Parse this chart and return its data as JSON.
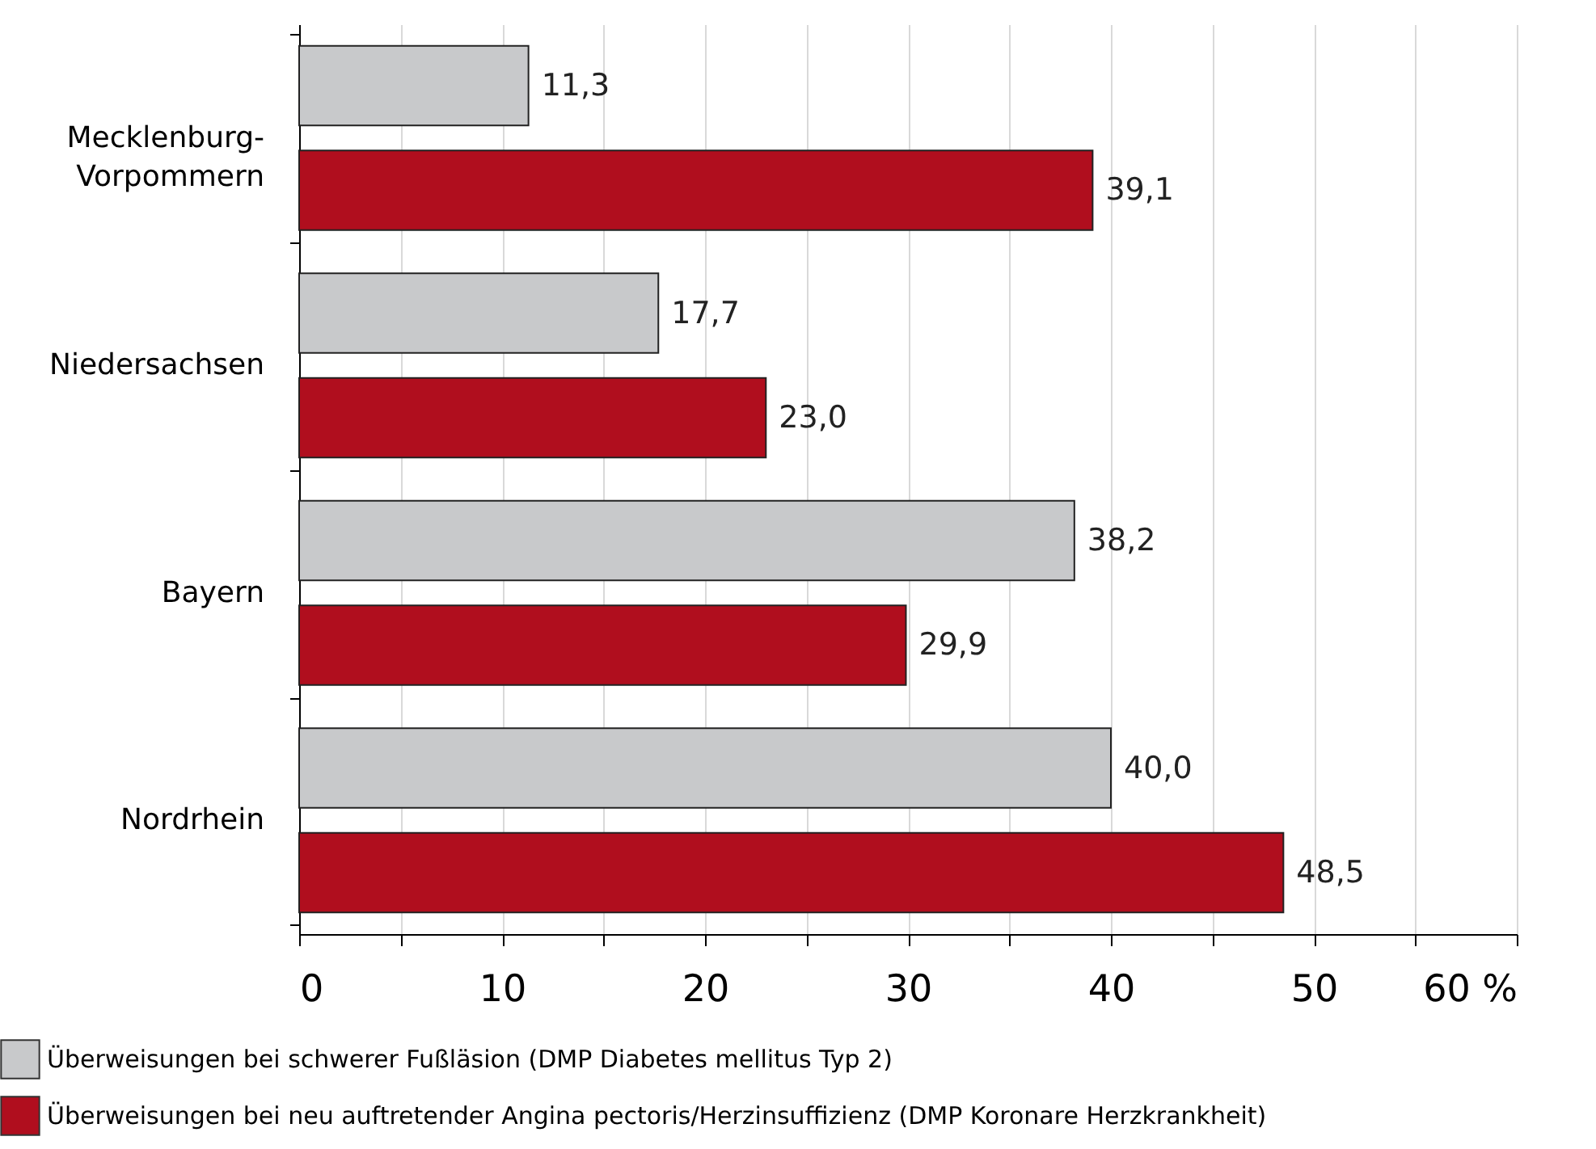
{
  "chart_data": {
    "type": "bar",
    "orientation": "horizontal",
    "categories": [
      "Mecklenburg-Vorpommern",
      "Niedersachsen",
      "Bayern",
      "Nordrhein"
    ],
    "series": [
      {
        "name": "Überweisungen bei schwerer Fußläsion (DMP Diabetes mellitus Typ 2)",
        "color": "#c8c9cb",
        "values": [
          11.3,
          17.7,
          38.2,
          40.0
        ],
        "value_labels": [
          "11,3",
          "17,7",
          "38,2",
          "40,0"
        ]
      },
      {
        "name": "Überweisungen bei neu auftretender Angina pectoris/Herzinsuffizienz (DMP Koronare Herzkrankheit)",
        "color": "#b00e1e",
        "values": [
          39.1,
          23.0,
          29.9,
          48.5
        ],
        "value_labels": [
          "39,1",
          "23,0",
          "29,9",
          "48,5"
        ]
      }
    ],
    "xlim": [
      0,
      60
    ],
    "xticks": [
      0,
      {
        "value": 5,
        "label": null
      },
      10,
      {
        "value": 15,
        "label": null
      },
      20,
      {
        "value": 25,
        "label": null
      },
      30,
      {
        "value": 35,
        "label": null
      },
      40,
      {
        "value": 45,
        "label": null
      },
      50,
      {
        "value": 55,
        "label": null
      },
      {
        "value": 60,
        "label": "60 %"
      }
    ],
    "grid": "x",
    "legend": "bottom"
  }
}
